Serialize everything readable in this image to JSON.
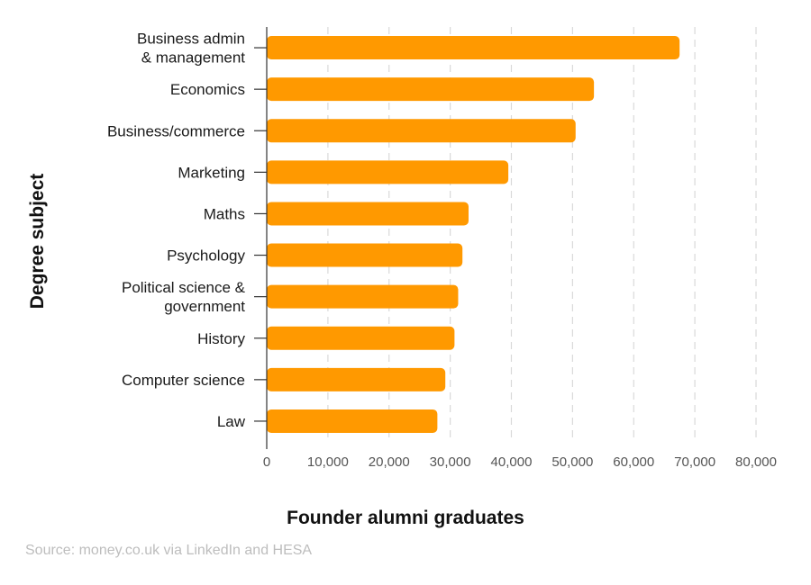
{
  "colors": {
    "bar": "#ff9900",
    "grid": "#d9d9d9",
    "axis": "#333333"
  },
  "chart_data": {
    "type": "bar",
    "orientation": "horizontal",
    "categories": [
      "Business admin\n& management",
      "Economics",
      "Business/commerce",
      "Marketing",
      "Maths",
      "Psychology",
      "Political science &\ngovernment",
      "History",
      "Computer science",
      "Law"
    ],
    "values": [
      67500,
      53500,
      50500,
      39500,
      33000,
      32000,
      31300,
      30700,
      29200,
      27900
    ],
    "xlabel": "Founder alumni graduates",
    "ylabel": "Degree subject",
    "xlim": [
      0,
      80000
    ],
    "xticks": [
      0,
      10000,
      20000,
      30000,
      40000,
      50000,
      60000,
      70000,
      80000
    ],
    "xtick_labels": [
      "0",
      "10,000",
      "20,000",
      "30,000",
      "40,000",
      "50,000",
      "60,000",
      "70,000",
      "80,000"
    ],
    "grid": "vertical dashed",
    "legend": "none"
  },
  "source": "Source: money.co.uk via LinkedIn and HESA"
}
